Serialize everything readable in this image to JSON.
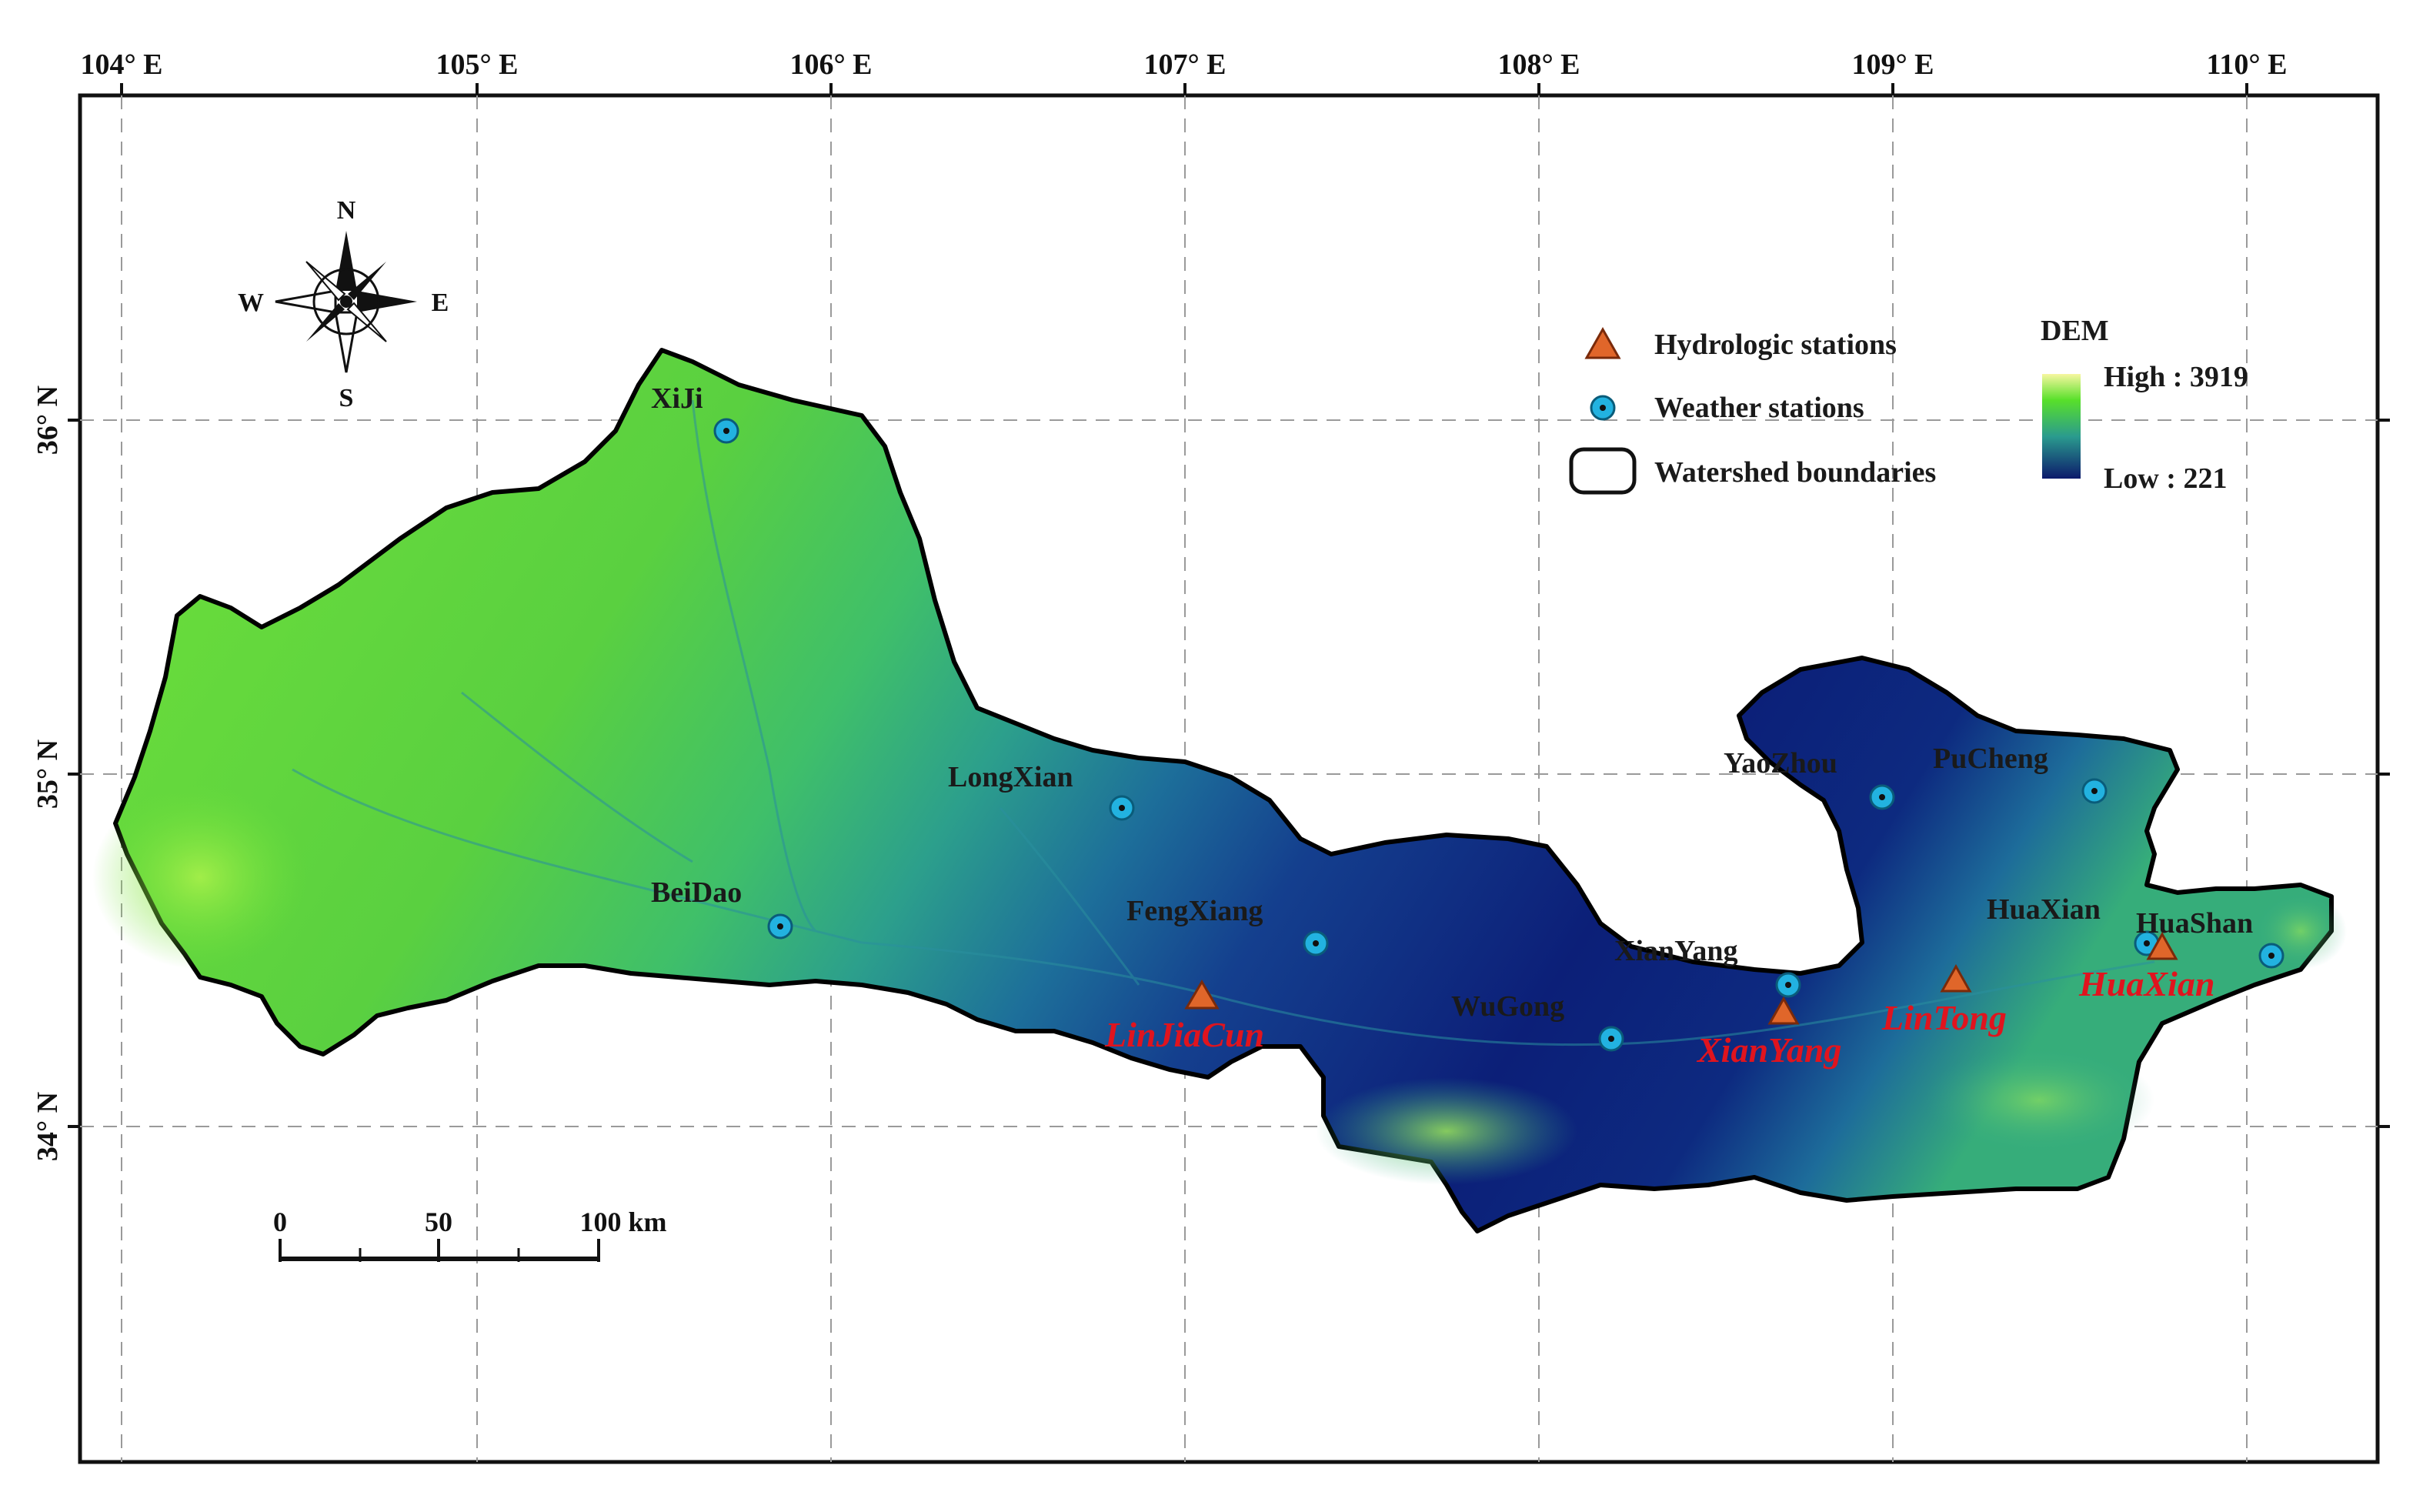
{
  "map": {
    "longitude_labels": [
      "104° E",
      "105° E",
      "106° E",
      "107° E",
      "108° E",
      "109° E",
      "110° E"
    ],
    "latitude_labels": [
      "36° N",
      "35° N",
      "34° N"
    ],
    "graticule": "dashed grey lines"
  },
  "compass": {
    "north": "N",
    "south": "S",
    "east": "E",
    "west": "W"
  },
  "scale_bar": {
    "ticks": [
      "0",
      "50",
      "100 km"
    ]
  },
  "legend": {
    "hydrologic": "Hydrologic stations",
    "weather": "Weather stations",
    "boundary": "Watershed boundaries",
    "dem_title": "DEM",
    "dem_high": "High : 3919",
    "dem_low": "Low : 221",
    "colors": {
      "dem_high": "#f7f7a0",
      "dem_mid_high": "#58e02a",
      "dem_mid": "#2a9a8e",
      "dem_low": "#0c1a6b",
      "weather_marker": "#22b2e0",
      "hydro_marker": "#e0662a",
      "hydro_label": "#e0141e"
    }
  },
  "weather_stations": [
    "XiJi",
    "LongXian",
    "BeiDao",
    "FengXiang",
    "WuGong",
    "XianYang",
    "YaoZhou",
    "PuCheng",
    "HuaXian",
    "HuaShan"
  ],
  "hydrologic_stations": [
    "LinJiaCun",
    "XianYang",
    "LinTong",
    "HuaXian"
  ]
}
